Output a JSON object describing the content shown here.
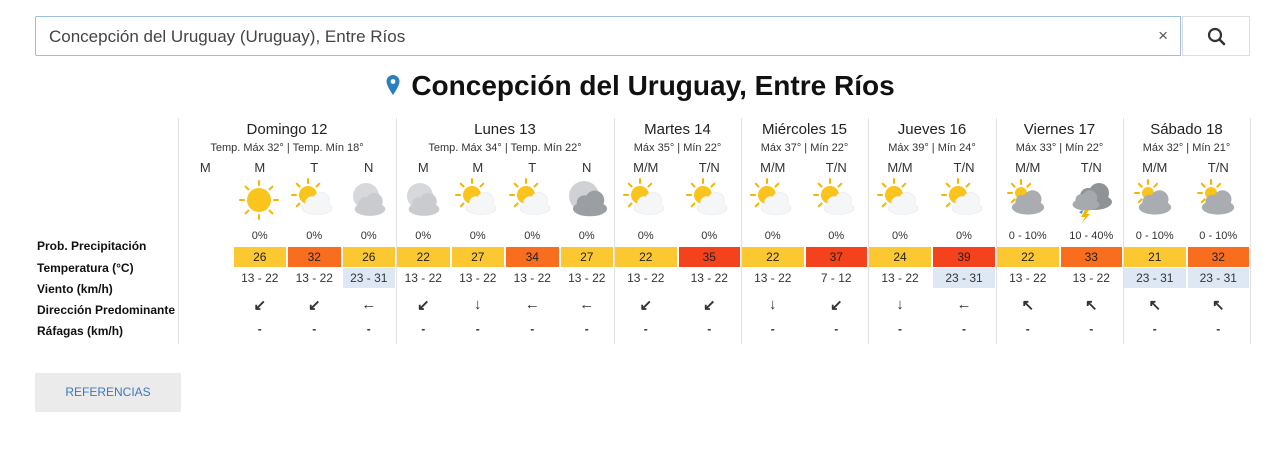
{
  "search": {
    "query": "Concepción del Uruguay (Uruguay), Entre Ríos",
    "clear": "×"
  },
  "title": "Concepción del Uruguay, Entre Ríos",
  "row_labels": [
    "Prob. Precipitación",
    "Temperatura (°C)",
    "Viento (km/h)",
    "Dirección Predominante",
    "Ráfagas (km/h)"
  ],
  "days": [
    {
      "name": "Domingo 12",
      "summary": "Temp. Máx 32° | Temp. Mín 18°",
      "periods": [
        {
          "label": "M"
        },
        {
          "label": "M",
          "icon": "sun",
          "precip": "0%",
          "temp": 26,
          "wind": "13 - 22",
          "direction": "↙",
          "gust": "-"
        },
        {
          "label": "T",
          "icon": "partly",
          "precip": "0%",
          "temp": 32,
          "wind": "13 - 22",
          "direction": "↙",
          "gust": "-"
        },
        {
          "label": "N",
          "icon": "moon-cloud",
          "precip": "0%",
          "temp": 26,
          "wind": "23 - 31",
          "wind_color": "#dde8f4",
          "direction": "←",
          "gust": "-"
        }
      ]
    },
    {
      "name": "Lunes 13",
      "summary": "Temp. Máx 34° | Temp. Mín 22°",
      "periods": [
        {
          "label": "M",
          "icon": "moon-cloud",
          "precip": "0%",
          "temp": 22,
          "wind": "13 - 22",
          "direction": "↙",
          "gust": "-"
        },
        {
          "label": "M",
          "icon": "partly",
          "precip": "0%",
          "temp": 27,
          "wind": "13 - 22",
          "direction": "↓",
          "gust": "-"
        },
        {
          "label": "T",
          "icon": "partly",
          "precip": "0%",
          "temp": 34,
          "wind": "13 - 22",
          "direction": "←",
          "gust": "-"
        },
        {
          "label": "N",
          "icon": "moon-cloudy",
          "precip": "0%",
          "temp": 27,
          "wind": "13 - 22",
          "direction": "←",
          "gust": "-"
        }
      ]
    },
    {
      "name": "Martes 14",
      "summary": "Máx 35° | Mín 22°",
      "periods": [
        {
          "label": "M/M",
          "icon": "partly",
          "precip": "0%",
          "temp": 22,
          "wind": "13 - 22",
          "direction": "↙",
          "gust": "-"
        },
        {
          "label": "T/N",
          "icon": "partly",
          "precip": "0%",
          "temp": 35,
          "wind": "13 - 22",
          "direction": "↙",
          "gust": "-"
        }
      ]
    },
    {
      "name": "Miércoles 15",
      "summary": "Máx 37° | Mín 22°",
      "periods": [
        {
          "label": "M/M",
          "icon": "partly",
          "precip": "0%",
          "temp": 22,
          "wind": "13 - 22",
          "direction": "↓",
          "gust": "-"
        },
        {
          "label": "T/N",
          "icon": "partly",
          "precip": "0%",
          "temp": 37,
          "wind": "7 - 12",
          "direction": "↙",
          "gust": "-"
        }
      ]
    },
    {
      "name": "Jueves 16",
      "summary": "Máx 39° | Mín 24°",
      "periods": [
        {
          "label": "M/M",
          "icon": "partly",
          "precip": "0%",
          "temp": 24,
          "wind": "13 - 22",
          "direction": "↓",
          "gust": "-"
        },
        {
          "label": "T/N",
          "icon": "partly",
          "precip": "0%",
          "temp": 39,
          "wind": "23 - 31",
          "wind_color": "#dde8f4",
          "direction": "←",
          "gust": "-"
        }
      ]
    },
    {
      "name": "Viernes 17",
      "summary": "Máx 33° | Mín 22°",
      "periods": [
        {
          "label": "M/M",
          "icon": "cloudy",
          "precip": "0 - 10%",
          "temp": 22,
          "wind": "13 - 22",
          "direction": "↖",
          "gust": "-"
        },
        {
          "label": "T/N",
          "icon": "storm",
          "precip": "10 - 40%",
          "temp": 33,
          "wind": "13 - 22",
          "direction": "↖",
          "gust": "-"
        }
      ]
    },
    {
      "name": "Sábado 18",
      "summary": "Máx 32° | Mín 21°",
      "periods": [
        {
          "label": "M/M",
          "icon": "cloudy",
          "precip": "0 - 10%",
          "temp": 21,
          "wind": "23 - 31",
          "wind_color": "#dde8f4",
          "direction": "↖",
          "gust": "-"
        },
        {
          "label": "T/N",
          "icon": "cloudy",
          "precip": "0 - 10%",
          "temp": 32,
          "wind": "23 - 31",
          "wind_color": "#dde8f4",
          "direction": "↖",
          "gust": "-"
        }
      ]
    }
  ],
  "button": "REFERENCIAS"
}
